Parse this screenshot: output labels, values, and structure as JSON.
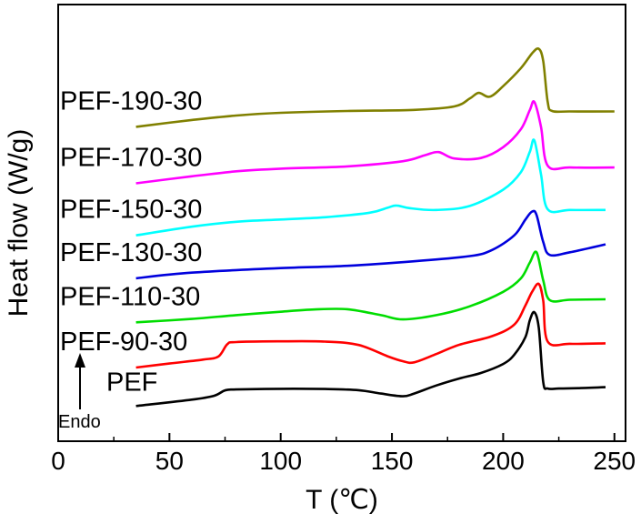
{
  "chart_data": {
    "type": "line",
    "title": "",
    "xlabel": "T (℃)",
    "ylabel": "Heat flow (W/g)",
    "xlim": [
      0,
      255
    ],
    "xticks": [
      0,
      50,
      100,
      150,
      200,
      250
    ],
    "xtick_labels": [
      "0",
      "50",
      "100",
      "150",
      "200",
      "250"
    ],
    "y_tick_labels_shown": false,
    "legend": "labels next to curves",
    "annotation": {
      "text": "Endo",
      "arrow": "up"
    },
    "series": [
      {
        "name": "PEF",
        "color": "#000000",
        "x": [
          35,
          60,
          70,
          75,
          80,
          100,
          120,
          135,
          145,
          155,
          160,
          170,
          180,
          190,
          200,
          205,
          210,
          212,
          214,
          216,
          218,
          220,
          225,
          235,
          246
        ],
        "y": [
          0.15,
          0.43,
          0.6,
          0.84,
          0.88,
          0.91,
          0.9,
          0.85,
          0.7,
          0.58,
          0.7,
          1.06,
          1.36,
          1.61,
          2.01,
          2.42,
          3.2,
          3.95,
          4.3,
          3.6,
          1.2,
          0.92,
          0.92,
          0.94,
          0.98
        ]
      },
      {
        "name": "PEF-90-30",
        "color": "#ff0000",
        "x": [
          35,
          50,
          65,
          72,
          76,
          80,
          100,
          120,
          135,
          148,
          155,
          160,
          170,
          180,
          195,
          205,
          210,
          213,
          216,
          218,
          220,
          230,
          246
        ],
        "y": [
          1.85,
          2.03,
          2.2,
          2.34,
          2.88,
          2.98,
          3.01,
          3.0,
          2.85,
          2.35,
          2.13,
          2.08,
          2.45,
          2.85,
          3.24,
          3.75,
          4.6,
          5.2,
          5.55,
          4.8,
          3.0,
          2.9,
          2.92
        ]
      },
      {
        "name": "PEF-110-30",
        "color": "#00dd00",
        "x": [
          35,
          60,
          80,
          100,
          115,
          130,
          145,
          155,
          170,
          185,
          200,
          208,
          212,
          215,
          218,
          221,
          230,
          246
        ],
        "y": [
          3.85,
          4.0,
          4.17,
          4.32,
          4.42,
          4.43,
          4.17,
          3.98,
          4.17,
          4.56,
          5.2,
          5.8,
          6.5,
          6.95,
          5.7,
          4.83,
          4.85,
          4.87
        ]
      },
      {
        "name": "PEF-130-30",
        "color": "#0000dd",
        "x": [
          35,
          60,
          100,
          130,
          160,
          185,
          195,
          205,
          210,
          213,
          215,
          218,
          221,
          230,
          246
        ],
        "y": [
          5.8,
          6.05,
          6.25,
          6.35,
          6.55,
          6.78,
          7.05,
          7.7,
          8.4,
          8.75,
          8.6,
          7.4,
          6.83,
          6.95,
          7.3
        ]
      },
      {
        "name": "PEF-150-30",
        "color": "#00ffff",
        "x": [
          35,
          60,
          80,
          100,
          120,
          140,
          148,
          152,
          158,
          170,
          185,
          200,
          208,
          212,
          214,
          217,
          220,
          230,
          246
        ],
        "y": [
          7.7,
          8.08,
          8.3,
          8.4,
          8.5,
          8.7,
          8.92,
          9.02,
          8.9,
          8.82,
          9.0,
          9.72,
          10.5,
          11.4,
          11.9,
          10.4,
          8.85,
          8.82,
          8.82
        ]
      },
      {
        "name": "PEF-170-30",
        "color": "#ff00ff",
        "x": [
          35,
          60,
          80,
          100,
          130,
          155,
          165,
          171,
          178,
          190,
          200,
          208,
          212,
          214,
          217,
          220,
          230,
          250
        ],
        "y": [
          10.0,
          10.31,
          10.53,
          10.65,
          10.75,
          10.98,
          11.25,
          11.38,
          11.1,
          11.12,
          11.6,
          12.4,
          13.25,
          13.6,
          12.5,
          10.78,
          10.7,
          10.7
        ]
      },
      {
        "name": "PEF-190-30",
        "color": "#808000",
        "x": [
          35,
          60,
          80,
          100,
          130,
          160,
          178,
          185,
          189,
          194,
          200,
          208,
          213,
          216,
          218,
          220,
          222,
          230,
          250
        ],
        "y": [
          12.5,
          12.8,
          13.0,
          13.12,
          13.2,
          13.25,
          13.4,
          13.75,
          14.0,
          13.83,
          14.3,
          15.1,
          15.75,
          15.95,
          15.4,
          13.6,
          13.2,
          13.18,
          13.18
        ]
      }
    ],
    "series_label_positions_note": "",
    "label_texts": [
      "PEF",
      "PEF-90-30",
      "PEF-110-30",
      "PEF-130-30",
      "PEF-150-30",
      "PEF-170-30",
      "PEF-190-30"
    ]
  }
}
